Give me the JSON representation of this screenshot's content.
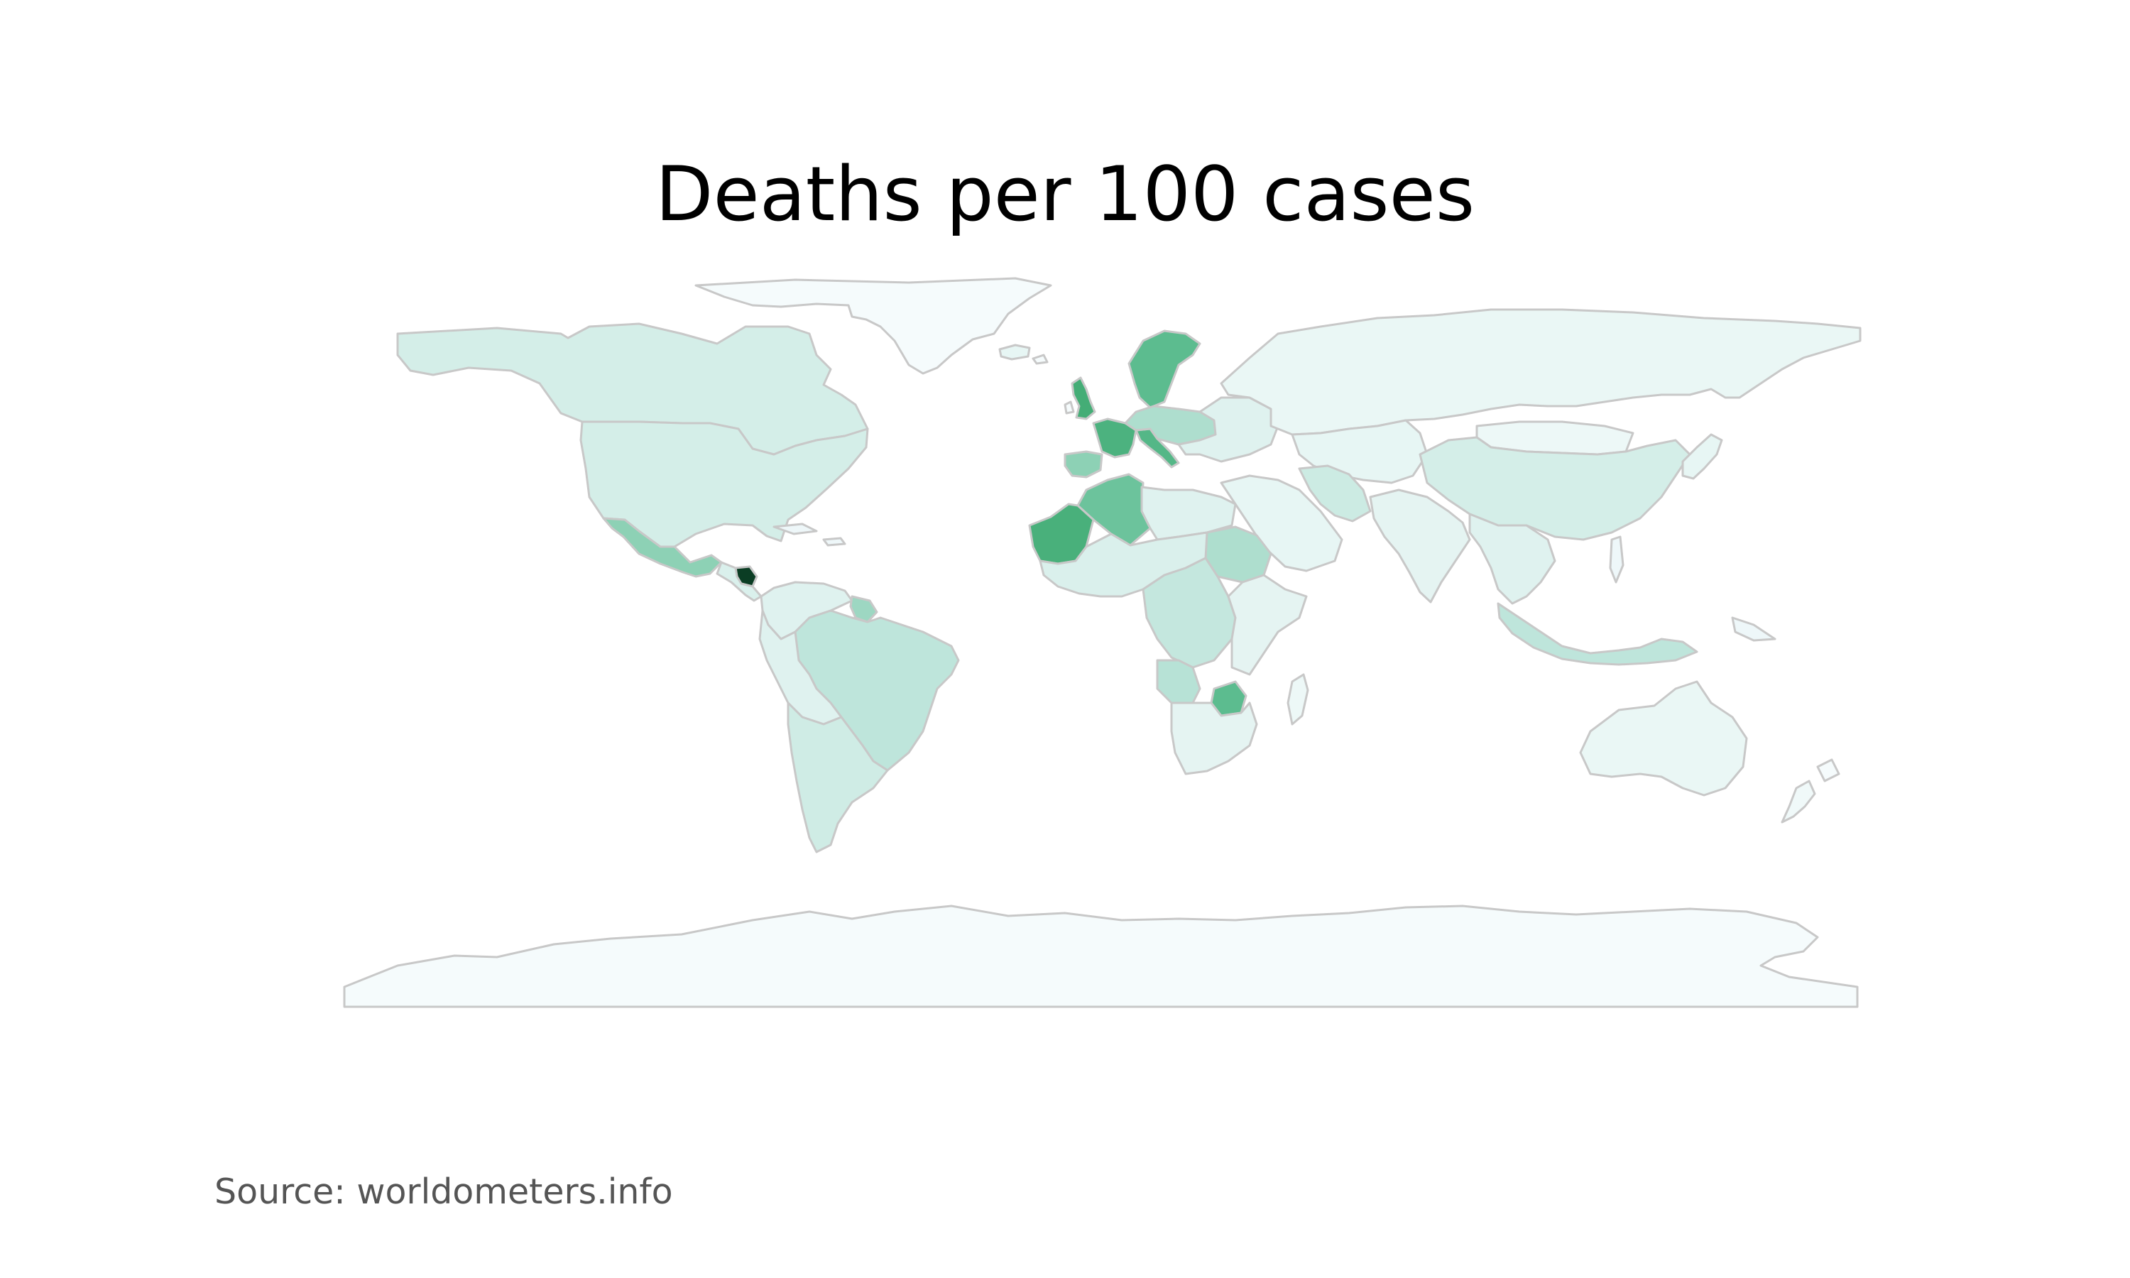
{
  "title": "Deaths per 100 cases",
  "source": "Source: worldometers.info",
  "colors": {
    "background": "#ffffff",
    "border": "#c8c8c8",
    "scale_lightest": "#f5fbfc",
    "scale_darkest": "#0b3d24"
  },
  "regions": [
    {
      "name": "Greenland",
      "level": 0.0
    },
    {
      "name": "Canada",
      "level": 0.12
    },
    {
      "name": "United States",
      "level": 0.12
    },
    {
      "name": "Mexico",
      "level": 0.35
    },
    {
      "name": "Nicaragua",
      "level": 1.0
    },
    {
      "name": "Central America",
      "level": 0.1
    },
    {
      "name": "Colombia / Venezuela",
      "level": 0.08
    },
    {
      "name": "Guyana",
      "level": 0.3
    },
    {
      "name": "Brazil",
      "level": 0.2
    },
    {
      "name": "Peru / Bolivia",
      "level": 0.08
    },
    {
      "name": "Southern Cone",
      "level": 0.14
    },
    {
      "name": "Iceland",
      "level": 0.05
    },
    {
      "name": "United Kingdom",
      "level": 0.65
    },
    {
      "name": "Scandinavia",
      "level": 0.5
    },
    {
      "name": "France",
      "level": 0.6
    },
    {
      "name": "Spain",
      "level": 0.35
    },
    {
      "name": "Italy",
      "level": 0.55
    },
    {
      "name": "Central Europe",
      "level": 0.25
    },
    {
      "name": "Eastern Europe",
      "level": 0.08
    },
    {
      "name": "Russia",
      "level": 0.04
    },
    {
      "name": "Kazakhstan / Central Asia",
      "level": 0.05
    },
    {
      "name": "Mongolia",
      "level": 0.03
    },
    {
      "name": "China",
      "level": 0.12
    },
    {
      "name": "Middle East",
      "level": 0.05
    },
    {
      "name": "Iran",
      "level": 0.15
    },
    {
      "name": "India",
      "level": 0.06
    },
    {
      "name": "Southeast Asia",
      "level": 0.08
    },
    {
      "name": "Indonesia",
      "level": 0.2
    },
    {
      "name": "Japan",
      "level": 0.05
    },
    {
      "name": "Algeria",
      "level": 0.45
    },
    {
      "name": "Mauritania / Western Sahara",
      "level": 0.62
    },
    {
      "name": "North Africa East",
      "level": 0.08
    },
    {
      "name": "Sudan",
      "level": 0.25
    },
    {
      "name": "West Africa",
      "level": 0.1
    },
    {
      "name": "Central Africa",
      "level": 0.18
    },
    {
      "name": "East Africa",
      "level": 0.06
    },
    {
      "name": "Angola",
      "level": 0.22
    },
    {
      "name": "Zimbabwe",
      "level": 0.5
    },
    {
      "name": "Southern Africa",
      "level": 0.06
    },
    {
      "name": "Madagascar",
      "level": 0.03
    },
    {
      "name": "Australia",
      "level": 0.04
    },
    {
      "name": "New Zealand",
      "level": 0.02
    },
    {
      "name": "Antarctica",
      "level": 0.0
    }
  ]
}
